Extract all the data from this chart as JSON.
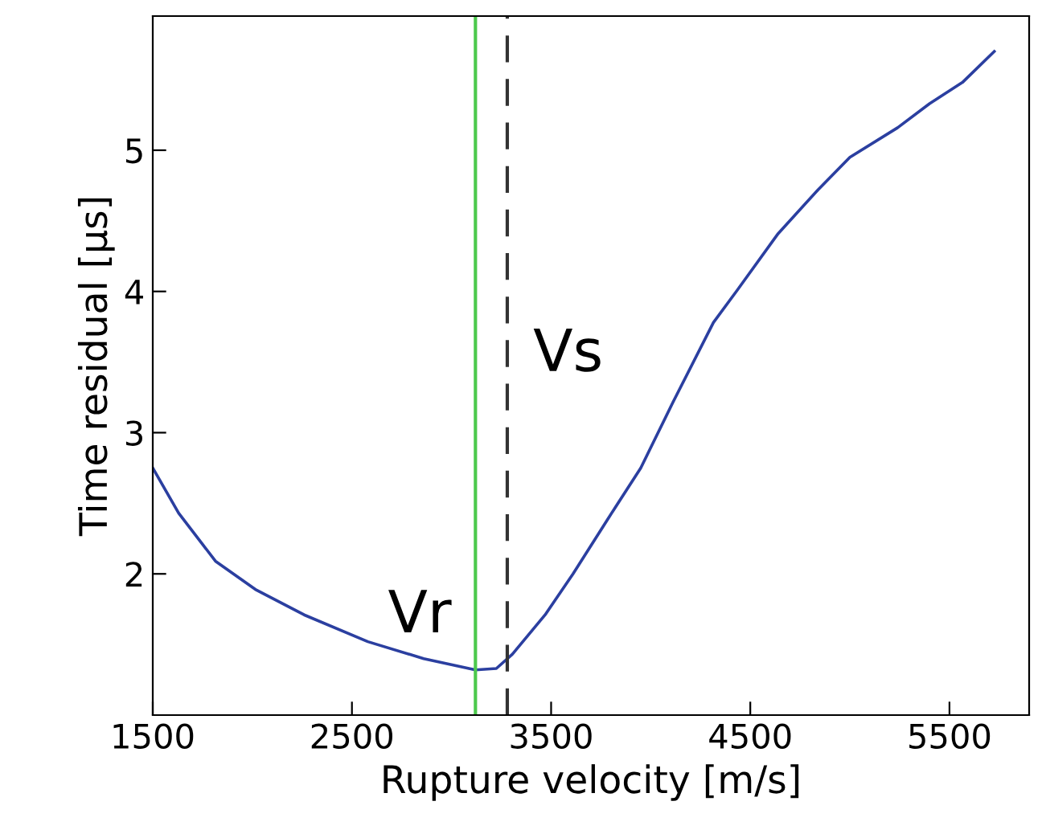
{
  "chart_data": {
    "type": "line",
    "xlabel": "Rupture velocity [m/s]",
    "ylabel": "Time residual [µs]",
    "x": [
      1500,
      1630,
      1815,
      2015,
      2260,
      2580,
      2860,
      3120,
      3225,
      3305,
      3470,
      3610,
      3790,
      3950,
      4110,
      4315,
      4435,
      4640,
      4840,
      5000,
      5240,
      5400,
      5565,
      5725
    ],
    "series": [
      {
        "color": "#2b3fa0",
        "values": [
          2.75,
          2.43,
          2.09,
          1.89,
          1.71,
          1.52,
          1.4,
          1.32,
          1.33,
          1.43,
          1.71,
          2.0,
          2.4,
          2.75,
          3.21,
          3.78,
          4.01,
          4.41,
          4.72,
          4.95,
          5.16,
          5.33,
          5.48,
          5.7
        ]
      }
    ],
    "xlim": [
      1500,
      5900
    ],
    "xticks": [
      1500,
      2500,
      3500,
      4500,
      5500
    ],
    "ylim": [
      1.0,
      5.95
    ],
    "yticks": [
      2,
      3,
      4,
      5
    ],
    "ref_lines": [
      {
        "axis": "x",
        "value": 3120,
        "label": "Vr",
        "color": "#4cc94c",
        "line_style": "solid"
      },
      {
        "axis": "x",
        "value": 3280,
        "label": "Vs",
        "color": "#333333",
        "line_style": "dashed"
      }
    ],
    "grid": false,
    "legend": false,
    "marker": "none",
    "line_style": "solid"
  }
}
